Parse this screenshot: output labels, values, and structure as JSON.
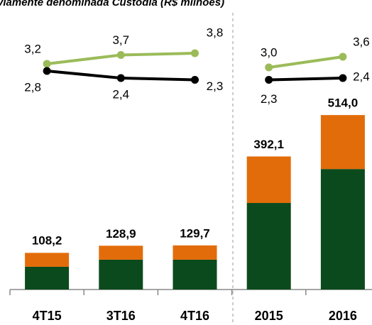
{
  "chart_data": {
    "type": "bar",
    "title": "viamente denominada Custódia (R$ milhões)",
    "categories": [
      "4T15",
      "3T16",
      "4T16",
      "2015",
      "2016"
    ],
    "series": [
      {
        "color": "#0b4a1c",
        "values": [
          67,
          88,
          88,
          255,
          355
        ]
      },
      {
        "color": "#e36c0a",
        "values": [
          41,
          41,
          42,
          137,
          159
        ]
      }
    ],
    "totals": [
      108.2,
      128.9,
      129.7,
      392.1,
      514.0
    ],
    "total_labels": [
      "108,2",
      "128,9",
      "129,7",
      "392,1",
      "514,0"
    ],
    "ylim": [
      0,
      600
    ],
    "line_series": [
      {
        "color": "#9bbb59",
        "values": [
          3.2,
          3.7,
          3.8,
          null,
          null
        ],
        "value_labels": [
          "3,2",
          "3,7",
          "3,8",
          null,
          null
        ]
      },
      {
        "color": "#000000",
        "values": [
          2.8,
          2.4,
          2.3,
          null,
          null
        ],
        "value_labels": [
          "2,8",
          "2,4",
          "2,3",
          null,
          null
        ]
      },
      {
        "color": "#9bbb59",
        "values": [
          null,
          null,
          null,
          3.0,
          3.6
        ],
        "value_labels": [
          null,
          null,
          null,
          "3,0",
          "3,6"
        ]
      },
      {
        "color": "#000000",
        "values": [
          null,
          null,
          null,
          2.3,
          2.4
        ],
        "value_labels": [
          null,
          null,
          null,
          "2,3",
          "2,4"
        ]
      }
    ],
    "y2lim": [
      0,
      6
    ]
  }
}
